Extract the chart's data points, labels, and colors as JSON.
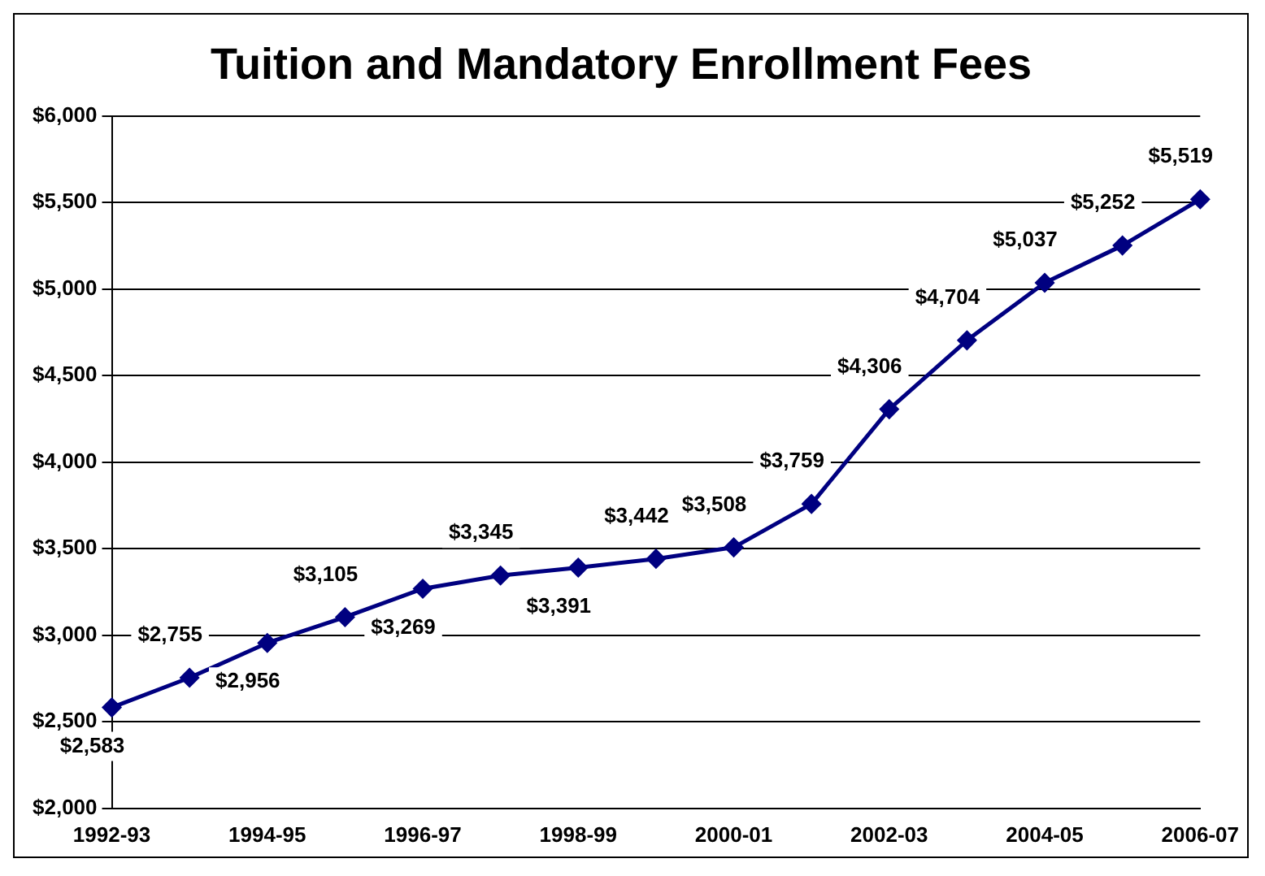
{
  "chart_data": {
    "type": "line",
    "title": "Tuition and Mandatory Enrollment Fees",
    "categories": [
      "1992-93",
      null,
      "1994-95",
      null,
      "1996-97",
      null,
      "1998-99",
      null,
      "2000-01",
      null,
      "2002-03",
      null,
      "2004-05",
      null,
      "2006-07"
    ],
    "series": [
      {
        "color": "#000080",
        "values": [
          2583,
          2755,
          2956,
          3105,
          3269,
          3345,
          3391,
          3442,
          3508,
          3759,
          4306,
          4704,
          5037,
          5252,
          5519
        ]
      }
    ],
    "ylim": [
      2000,
      6000
    ],
    "yticks": [
      {
        "value": 2000,
        "label": "$2,000"
      },
      {
        "value": 2500,
        "label": "$2,500"
      },
      {
        "value": 3000,
        "label": "$3,000"
      },
      {
        "value": 3500,
        "label": "$3,500"
      },
      {
        "value": 4000,
        "label": "$4,000"
      },
      {
        "value": 4500,
        "label": "$4,500"
      },
      {
        "value": 5000,
        "label": "$5,000"
      },
      {
        "value": 5500,
        "label": "$5,500"
      },
      {
        "value": 6000,
        "label": "$6,000"
      }
    ],
    "value_labels": [
      "$2,583",
      "$2,755",
      "$2,956",
      "$3,105",
      "$3,269",
      "$3,345",
      "$3,391",
      "$3,442",
      "$3,508",
      "$3,759",
      "$4,306",
      "$4,704",
      "$5,037",
      "$5,252",
      "$5,519"
    ],
    "grid": "y",
    "legend": false,
    "marker": "diamond",
    "line_style": "solid"
  }
}
